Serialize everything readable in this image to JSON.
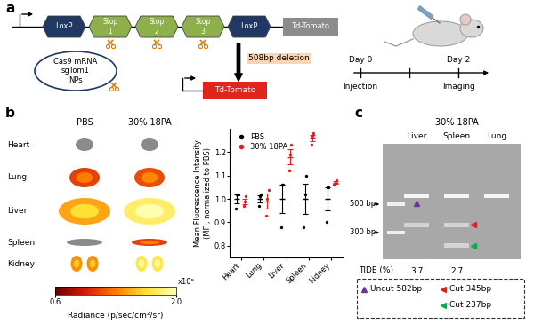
{
  "chart_data": {
    "type": "scatter",
    "ylabel": "Mean Fluorescence Intensity\n(MFI, normalized to PBS)",
    "categories": [
      "Heart",
      "Lung",
      "Liver",
      "Spleen",
      "Kidney"
    ],
    "series": [
      {
        "name": "PBS",
        "color": "#000000",
        "values": [
          1.0,
          1.0,
          1.0,
          1.0,
          1.0
        ],
        "errors": [
          0.02,
          0.015,
          0.06,
          0.065,
          0.05
        ],
        "points": [
          [
            0.96,
            1.02,
            1.02
          ],
          [
            0.97,
            1.01,
            1.02
          ],
          [
            0.88,
            1.06,
            1.06
          ],
          [
            0.88,
            1.02,
            1.1
          ],
          [
            0.9,
            1.05,
            1.05
          ]
        ]
      },
      {
        "name": "30% 18PA",
        "color": "#e02020",
        "values": [
          0.99,
          0.99,
          1.18,
          1.26,
          1.07
        ],
        "errors": [
          0.012,
          0.032,
          0.032,
          0.015,
          0.006
        ],
        "points": [
          [
            0.97,
            0.99,
            1.01
          ],
          [
            0.93,
            1.0,
            1.04
          ],
          [
            1.12,
            1.19,
            1.23
          ],
          [
            1.23,
            1.27,
            1.28
          ],
          [
            1.06,
            1.07,
            1.08
          ]
        ]
      }
    ],
    "ylim": [
      0.75,
      1.3
    ],
    "yticks": [
      0.8,
      0.9,
      1.0,
      1.1,
      1.2
    ],
    "legend": "upper left"
  },
  "panel_labels": [
    "a",
    "b",
    "c"
  ],
  "panel_a": {
    "construct": {
      "loxp": "LoxP",
      "stops": [
        "Stop\n1",
        "Stop\n2",
        "Stop\n3"
      ],
      "reporter": "Td-Tomato"
    },
    "nps": "Cas9 mRNA\nsgTom1\nNPs",
    "deletion": "508bp deletion",
    "product": "Td-Tomato",
    "days": [
      "Day 0",
      "Day 2"
    ],
    "events": [
      "Injection",
      "Imaging"
    ]
  },
  "panel_b_images": {
    "columns": [
      "PBS",
      "30% 18PA"
    ],
    "organs": [
      "Heart",
      "Lung",
      "Liver",
      "Spleen",
      "Kidney"
    ],
    "colorbar": {
      "range": [
        0.6,
        2.0
      ],
      "ticks": [
        0.6,
        2.0
      ],
      "multiplier": "x10⁸",
      "label": "Radiance (p/sec/cm²/sr)"
    }
  },
  "panel_c": {
    "title": "30% 18PA",
    "lanes": [
      "Liver",
      "Spleen",
      "Lung"
    ],
    "ladder": [
      {
        "value": 500,
        "label": "500 bp"
      },
      {
        "value": 300,
        "label": "300 bp"
      }
    ],
    "bands": [
      [
        582,
        345
      ],
      [
        582,
        345,
        237
      ],
      [
        582
      ]
    ],
    "tide": {
      "label": "TIDE (%)",
      "values": [
        3.7,
        2.7,
        null
      ]
    },
    "key": [
      {
        "label": "Uncut 582bp",
        "bp": 582,
        "lane": "Liver",
        "color": "#7030a0"
      },
      {
        "label": "Cut 345bp",
        "bp": 345,
        "lane": "Spleen",
        "color": "#e02020"
      },
      {
        "label": "Cut 237bp",
        "bp": 237,
        "lane": "Spleen",
        "color": "#00b050"
      }
    ]
  }
}
